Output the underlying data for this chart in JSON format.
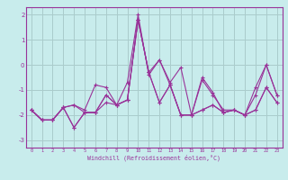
{
  "xlabel": "Windchill (Refroidissement éolien,°C)",
  "x": [
    0,
    1,
    2,
    3,
    4,
    5,
    6,
    7,
    8,
    9,
    10,
    11,
    12,
    13,
    14,
    15,
    16,
    17,
    18,
    19,
    20,
    21,
    22,
    23
  ],
  "line1": [
    -1.8,
    -2.2,
    -2.2,
    -1.7,
    -1.6,
    -1.8,
    -0.8,
    -0.9,
    -1.6,
    -0.7,
    2.0,
    -0.4,
    0.2,
    -0.7,
    -0.1,
    -2.0,
    -0.6,
    -1.2,
    -1.8,
    -1.8,
    -2.0,
    -1.2,
    0.0,
    -1.2
  ],
  "line2": [
    -1.8,
    -2.2,
    -2.2,
    -1.7,
    -2.5,
    -1.9,
    -1.9,
    -1.2,
    -1.6,
    -1.4,
    1.8,
    -0.3,
    0.2,
    -0.8,
    -2.0,
    -2.0,
    -0.5,
    -1.1,
    -1.9,
    -1.8,
    -2.0,
    -0.9,
    0.0,
    -1.2
  ],
  "line3": [
    -1.8,
    -2.2,
    -2.2,
    -1.7,
    -1.6,
    -1.9,
    -1.9,
    -1.2,
    -1.6,
    -1.4,
    1.8,
    -0.3,
    -1.5,
    -0.8,
    -2.0,
    -2.0,
    -1.8,
    -1.6,
    -1.9,
    -1.8,
    -2.0,
    -1.8,
    -0.9,
    -1.5
  ],
  "line4": [
    -1.8,
    -2.2,
    -2.2,
    -1.7,
    -2.5,
    -1.9,
    -1.9,
    -1.5,
    -1.6,
    -1.4,
    1.8,
    -0.3,
    -1.5,
    -0.8,
    -2.0,
    -2.0,
    -1.8,
    -1.6,
    -1.9,
    -1.8,
    -2.0,
    -1.8,
    -0.9,
    -1.5
  ],
  "line_color": "#993399",
  "bg_color": "#c8ecec",
  "grid_color": "#aacccc",
  "ylim": [
    -3.3,
    2.3
  ],
  "yticks": [
    -3,
    -2,
    -1,
    0,
    1,
    2
  ],
  "xticks": [
    0,
    1,
    2,
    3,
    4,
    5,
    6,
    7,
    8,
    9,
    10,
    11,
    12,
    13,
    14,
    15,
    16,
    17,
    18,
    19,
    20,
    21,
    22,
    23
  ],
  "xlim": [
    -0.5,
    23.5
  ]
}
